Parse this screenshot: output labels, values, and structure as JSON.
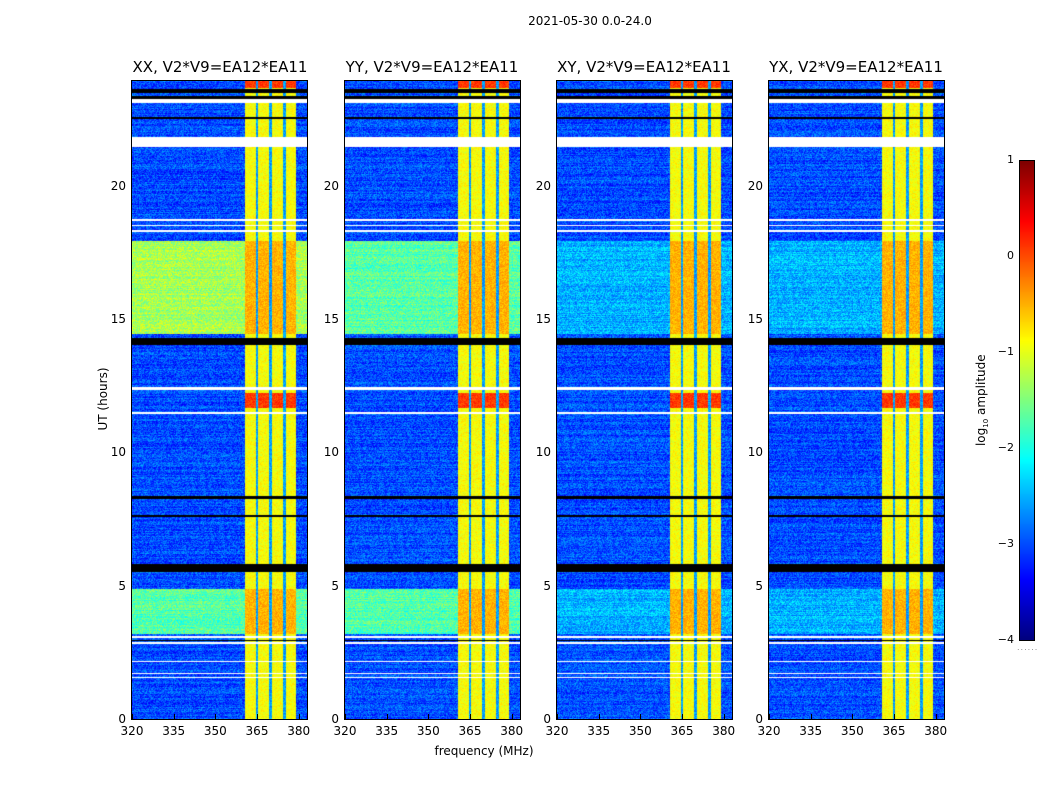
{
  "figure": {
    "suptitle": "2021-05-30 0.0-24.0"
  },
  "chart_data": {
    "type": "heatmap",
    "title": "2021-05-30 0.0-24.0",
    "xlabel": "frequency (MHz)",
    "ylabel": "UT (hours)",
    "xlim": [
      320,
      383
    ],
    "ylim": [
      0,
      24
    ],
    "xticks": [
      "320",
      "335",
      "350",
      "365",
      "380"
    ],
    "xtick_values": [
      320,
      335,
      350,
      365,
      380
    ],
    "yticks": [
      "0",
      "5",
      "10",
      "15",
      "20"
    ],
    "ytick_values": [
      0,
      5,
      10,
      15,
      20
    ],
    "colormap": "jet",
    "colorbar": {
      "label_main": "log",
      "label_sub": "10",
      "label_rest": " amplitude",
      "range": [
        -4,
        1
      ],
      "ticks": [
        "1",
        "0",
        "−1",
        "−2",
        "−3",
        "−4"
      ],
      "tick_values": [
        1,
        0,
        -1,
        -2,
        -3,
        -4
      ],
      "dots": "......"
    },
    "panels": [
      {
        "title": "XX, V2*V9=EA12*EA11",
        "pol": "XX",
        "baseline": "V2*V9=EA12*EA11"
      },
      {
        "title": "YY, V2*V9=EA12*EA11",
        "pol": "YY",
        "baseline": "V2*V9=EA12*EA11"
      },
      {
        "title": "XY, V2*V9=EA12*EA11",
        "pol": "XY",
        "baseline": "V2*V9=EA12*EA11"
      },
      {
        "title": "YX, V2*V9=EA12*EA11",
        "pol": "YX",
        "baseline": "V2*V9=EA12*EA11"
      }
    ],
    "background_level_log10": -3.0,
    "rfi_bands_mhz": [
      [
        360.5,
        364.5
      ],
      [
        365.3,
        369.3
      ],
      [
        370.3,
        374.3
      ],
      [
        375.3,
        379.0
      ]
    ],
    "rfi_level_log10": -0.9,
    "flagged_blank_hours": [
      [
        23.2,
        23.35
      ],
      [
        21.55,
        21.9
      ],
      [
        18.75,
        18.82
      ],
      [
        18.55,
        18.6
      ],
      [
        18.35,
        18.4
      ],
      [
        12.4,
        12.5
      ],
      [
        11.5,
        11.55
      ],
      [
        3.05,
        3.15
      ],
      [
        2.85,
        2.92
      ],
      [
        2.15,
        2.2
      ],
      [
        1.7,
        1.75
      ],
      [
        1.55,
        1.6
      ]
    ],
    "flagged_black_hours": [
      [
        23.55,
        23.7
      ],
      [
        23.3,
        23.45
      ],
      [
        22.6,
        22.65
      ],
      [
        14.1,
        14.35
      ],
      [
        5.55,
        5.85
      ],
      [
        2.95,
        3.0
      ],
      [
        8.3,
        8.4
      ],
      [
        7.6,
        7.7
      ]
    ],
    "elevated_hours": [
      [
        14.5,
        18.0
      ],
      [
        3.2,
        4.9
      ]
    ],
    "strong_rfi_hours": [
      [
        11.7,
        12.3
      ],
      [
        23.75,
        24.0
      ]
    ]
  }
}
